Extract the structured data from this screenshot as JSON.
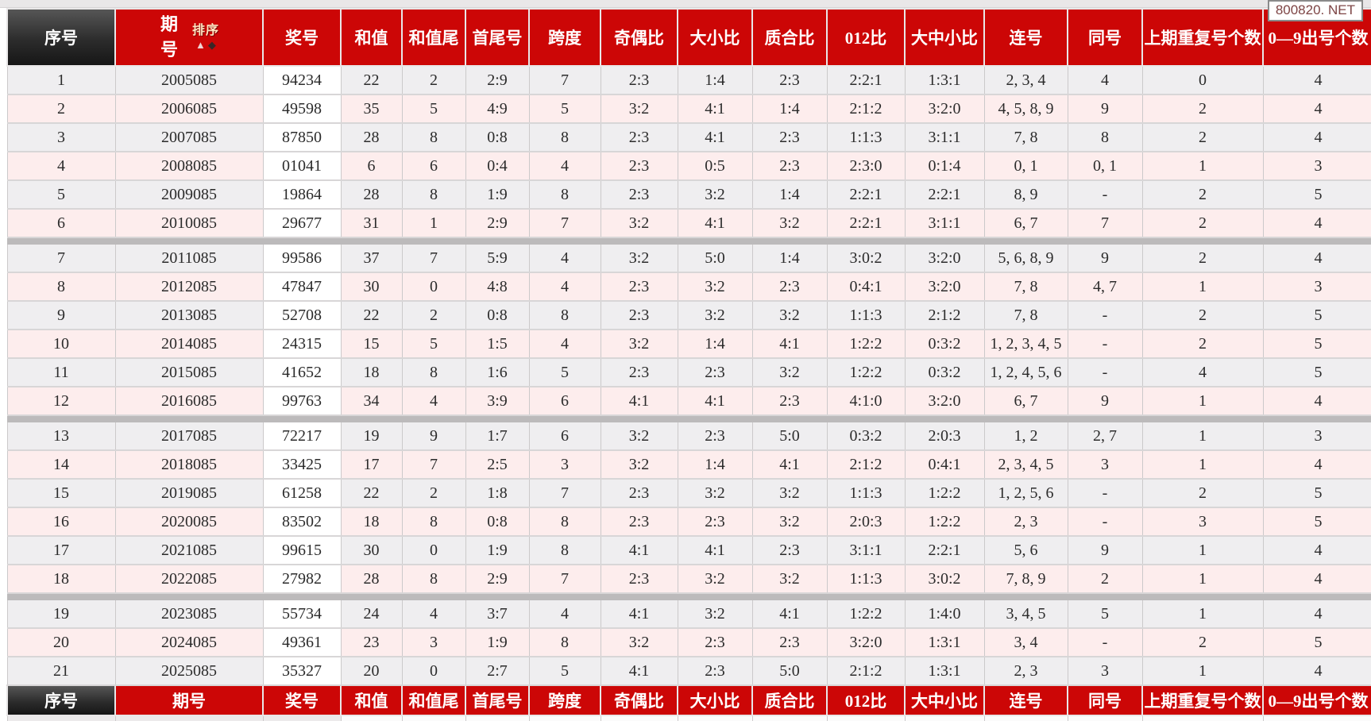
{
  "watermark": "800820. NET",
  "colors": {
    "header_red": "#cc0606",
    "header_dark": "#2c2c2c",
    "row_gray": "#efeef0",
    "row_pink": "#fdeded",
    "prize_cell_white": "#ffffff",
    "group_separator": "#bcbabb",
    "watermark_text": "#7d4444"
  },
  "table": {
    "sort_label": "排序",
    "columns": [
      {
        "key": "index",
        "label": "序号"
      },
      {
        "key": "period",
        "label": "期号"
      },
      {
        "key": "number",
        "label": "奖号"
      },
      {
        "key": "sum",
        "label": "和值"
      },
      {
        "key": "sum_tail",
        "label": "和值尾"
      },
      {
        "key": "first_last",
        "label": "首尾号"
      },
      {
        "key": "span",
        "label": "跨度"
      },
      {
        "key": "odd_even",
        "label": "奇偶比"
      },
      {
        "key": "big_small",
        "label": "大小比"
      },
      {
        "key": "prime_composite",
        "label": "质合比"
      },
      {
        "key": "ratio_012",
        "label": "012比"
      },
      {
        "key": "big_mid_small",
        "label": "大中小比"
      },
      {
        "key": "consecutive",
        "label": "连号"
      },
      {
        "key": "same_number",
        "label": "同号"
      },
      {
        "key": "prev_repeat_count",
        "label": "上期重复号个数"
      },
      {
        "key": "digits_appeared",
        "label": "0—9出号个数"
      }
    ],
    "group_breaks": [
      6,
      12,
      18
    ],
    "rows": [
      [
        "1",
        "2005085",
        "94234",
        "22",
        "2",
        "2:9",
        "7",
        "2:3",
        "1:4",
        "2:3",
        "2:2:1",
        "1:3:1",
        "2, 3, 4",
        "4",
        "0",
        "4"
      ],
      [
        "2",
        "2006085",
        "49598",
        "35",
        "5",
        "4:9",
        "5",
        "3:2",
        "4:1",
        "1:4",
        "2:1:2",
        "3:2:0",
        "4, 5, 8, 9",
        "9",
        "2",
        "4"
      ],
      [
        "3",
        "2007085",
        "87850",
        "28",
        "8",
        "0:8",
        "8",
        "2:3",
        "4:1",
        "2:3",
        "1:1:3",
        "3:1:1",
        "7, 8",
        "8",
        "2",
        "4"
      ],
      [
        "4",
        "2008085",
        "01041",
        "6",
        "6",
        "0:4",
        "4",
        "2:3",
        "0:5",
        "2:3",
        "2:3:0",
        "0:1:4",
        "0, 1",
        "0, 1",
        "1",
        "3"
      ],
      [
        "5",
        "2009085",
        "19864",
        "28",
        "8",
        "1:9",
        "8",
        "2:3",
        "3:2",
        "1:4",
        "2:2:1",
        "2:2:1",
        "8, 9",
        "-",
        "2",
        "5"
      ],
      [
        "6",
        "2010085",
        "29677",
        "31",
        "1",
        "2:9",
        "7",
        "3:2",
        "4:1",
        "3:2",
        "2:2:1",
        "3:1:1",
        "6, 7",
        "7",
        "2",
        "4"
      ],
      [
        "7",
        "2011085",
        "99586",
        "37",
        "7",
        "5:9",
        "4",
        "3:2",
        "5:0",
        "1:4",
        "3:0:2",
        "3:2:0",
        "5, 6, 8, 9",
        "9",
        "2",
        "4"
      ],
      [
        "8",
        "2012085",
        "47847",
        "30",
        "0",
        "4:8",
        "4",
        "2:3",
        "3:2",
        "2:3",
        "0:4:1",
        "3:2:0",
        "7, 8",
        "4, 7",
        "1",
        "3"
      ],
      [
        "9",
        "2013085",
        "52708",
        "22",
        "2",
        "0:8",
        "8",
        "2:3",
        "3:2",
        "3:2",
        "1:1:3",
        "2:1:2",
        "7, 8",
        "-",
        "2",
        "5"
      ],
      [
        "10",
        "2014085",
        "24315",
        "15",
        "5",
        "1:5",
        "4",
        "3:2",
        "1:4",
        "4:1",
        "1:2:2",
        "0:3:2",
        "1, 2, 3, 4, 5",
        "-",
        "2",
        "5"
      ],
      [
        "11",
        "2015085",
        "41652",
        "18",
        "8",
        "1:6",
        "5",
        "2:3",
        "2:3",
        "3:2",
        "1:2:2",
        "0:3:2",
        "1, 2, 4, 5, 6",
        "-",
        "4",
        "5"
      ],
      [
        "12",
        "2016085",
        "99763",
        "34",
        "4",
        "3:9",
        "6",
        "4:1",
        "4:1",
        "2:3",
        "4:1:0",
        "3:2:0",
        "6, 7",
        "9",
        "1",
        "4"
      ],
      [
        "13",
        "2017085",
        "72217",
        "19",
        "9",
        "1:7",
        "6",
        "3:2",
        "2:3",
        "5:0",
        "0:3:2",
        "2:0:3",
        "1, 2",
        "2, 7",
        "1",
        "3"
      ],
      [
        "14",
        "2018085",
        "33425",
        "17",
        "7",
        "2:5",
        "3",
        "3:2",
        "1:4",
        "4:1",
        "2:1:2",
        "0:4:1",
        "2, 3, 4, 5",
        "3",
        "1",
        "4"
      ],
      [
        "15",
        "2019085",
        "61258",
        "22",
        "2",
        "1:8",
        "7",
        "2:3",
        "3:2",
        "3:2",
        "1:1:3",
        "1:2:2",
        "1, 2, 5, 6",
        "-",
        "2",
        "5"
      ],
      [
        "16",
        "2020085",
        "83502",
        "18",
        "8",
        "0:8",
        "8",
        "2:3",
        "2:3",
        "3:2",
        "2:0:3",
        "1:2:2",
        "2, 3",
        "-",
        "3",
        "5"
      ],
      [
        "17",
        "2021085",
        "99615",
        "30",
        "0",
        "1:9",
        "8",
        "4:1",
        "4:1",
        "2:3",
        "3:1:1",
        "2:2:1",
        "5, 6",
        "9",
        "1",
        "4"
      ],
      [
        "18",
        "2022085",
        "27982",
        "28",
        "8",
        "2:9",
        "7",
        "2:3",
        "3:2",
        "3:2",
        "1:1:3",
        "3:0:2",
        "7, 8, 9",
        "2",
        "1",
        "4"
      ],
      [
        "19",
        "2023085",
        "55734",
        "24",
        "4",
        "3:7",
        "4",
        "4:1",
        "3:2",
        "4:1",
        "1:2:2",
        "1:4:0",
        "3, 4, 5",
        "5",
        "1",
        "4"
      ],
      [
        "20",
        "2024085",
        "49361",
        "23",
        "3",
        "1:9",
        "8",
        "3:2",
        "2:3",
        "2:3",
        "3:2:0",
        "1:3:1",
        "3, 4",
        "-",
        "2",
        "5"
      ],
      [
        "21",
        "2025085",
        "35327",
        "20",
        "0",
        "2:7",
        "5",
        "4:1",
        "2:3",
        "5:0",
        "2:1:2",
        "1:3:1",
        "2, 3",
        "3",
        "1",
        "4"
      ]
    ]
  }
}
